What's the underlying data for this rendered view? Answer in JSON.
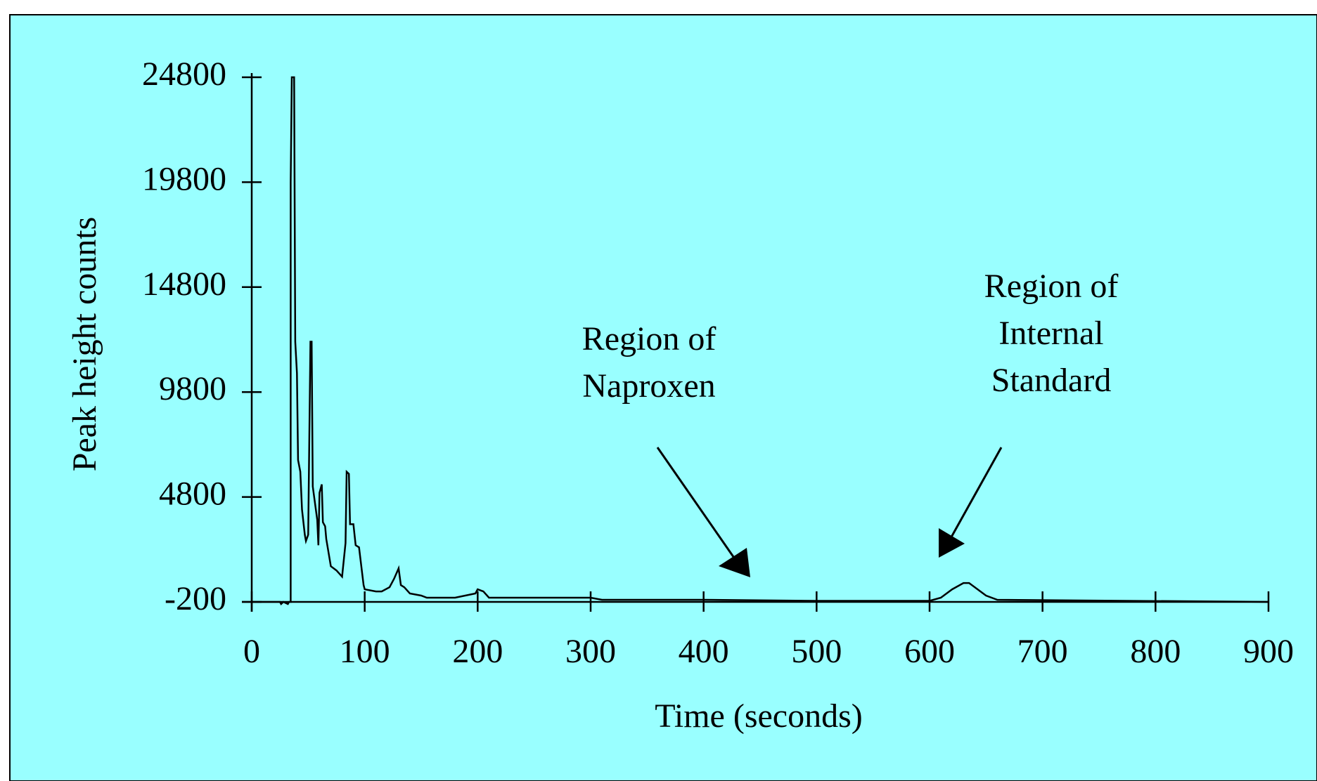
{
  "chart_data": {
    "type": "line",
    "xlabel": "Time (seconds)",
    "ylabel": "Peak height counts",
    "xlim": [
      0,
      900
    ],
    "xticks": [
      0,
      100,
      200,
      300,
      400,
      500,
      600,
      700,
      800,
      900
    ],
    "ylim": [
      -200,
      24800
    ],
    "yticks": [
      -200,
      4800,
      9800,
      14800,
      19800,
      24800
    ],
    "color": "#000000",
    "x": [
      0,
      25,
      26,
      28,
      32,
      33,
      34.5,
      34.5,
      35.5,
      37.5,
      38.5,
      40,
      41,
      43,
      44.5,
      47,
      48,
      50,
      52,
      53,
      54,
      58,
      59,
      60,
      62,
      63,
      65,
      66,
      70,
      75,
      80,
      83,
      84,
      86,
      87,
      90,
      92,
      95,
      99,
      100,
      110,
      115,
      122,
      126,
      130,
      132,
      135,
      140,
      150,
      155,
      170,
      180,
      198,
      200,
      205,
      210,
      300,
      310,
      400,
      500,
      600,
      610,
      620,
      630,
      635,
      640,
      650,
      660,
      900
    ],
    "values": [
      -200,
      -200,
      -300,
      -200,
      -300,
      -200,
      -200,
      19800,
      24800,
      24800,
      12200,
      10700,
      6560,
      6000,
      4200,
      3000,
      2700,
      3000,
      12200,
      12200,
      5300,
      3700,
      2500,
      5000,
      5400,
      3600,
      3400,
      2800,
      1500,
      1300,
      1000,
      2600,
      6000,
      5900,
      3500,
      3500,
      2500,
      2400,
      600,
      400,
      300,
      300,
      500,
      900,
      1400,
      600,
      500,
      200,
      100,
      0,
      0,
      0,
      200,
      400,
      300,
      0,
      0,
      -100,
      -100,
      -150,
      -150,
      0,
      400,
      700,
      700,
      500,
      100,
      -100,
      -200
    ],
    "annotations": [
      {
        "lines": [
          "Region of",
          "Naproxen"
        ]
      },
      {
        "lines": [
          "Region of",
          "Internal",
          "Standard"
        ]
      }
    ]
  }
}
